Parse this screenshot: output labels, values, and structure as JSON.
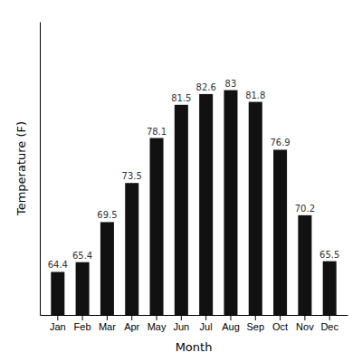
{
  "chart_data": {
    "type": "bar",
    "categories": [
      "Jan",
      "Feb",
      "Mar",
      "Apr",
      "May",
      "Jun",
      "Jul",
      "Aug",
      "Sep",
      "Oct",
      "Nov",
      "Dec"
    ],
    "values": [
      64.4,
      65.4,
      69.5,
      73.5,
      78.1,
      81.5,
      82.6,
      83.0,
      81.8,
      76.9,
      70.2,
      65.5
    ],
    "color": "#111111",
    "xlabel": "Month",
    "ylabel": "Temperature (F)",
    "ylim": [
      60,
      90
    ],
    "data_labels": true,
    "tick_labels": "x",
    "grid": false
  }
}
